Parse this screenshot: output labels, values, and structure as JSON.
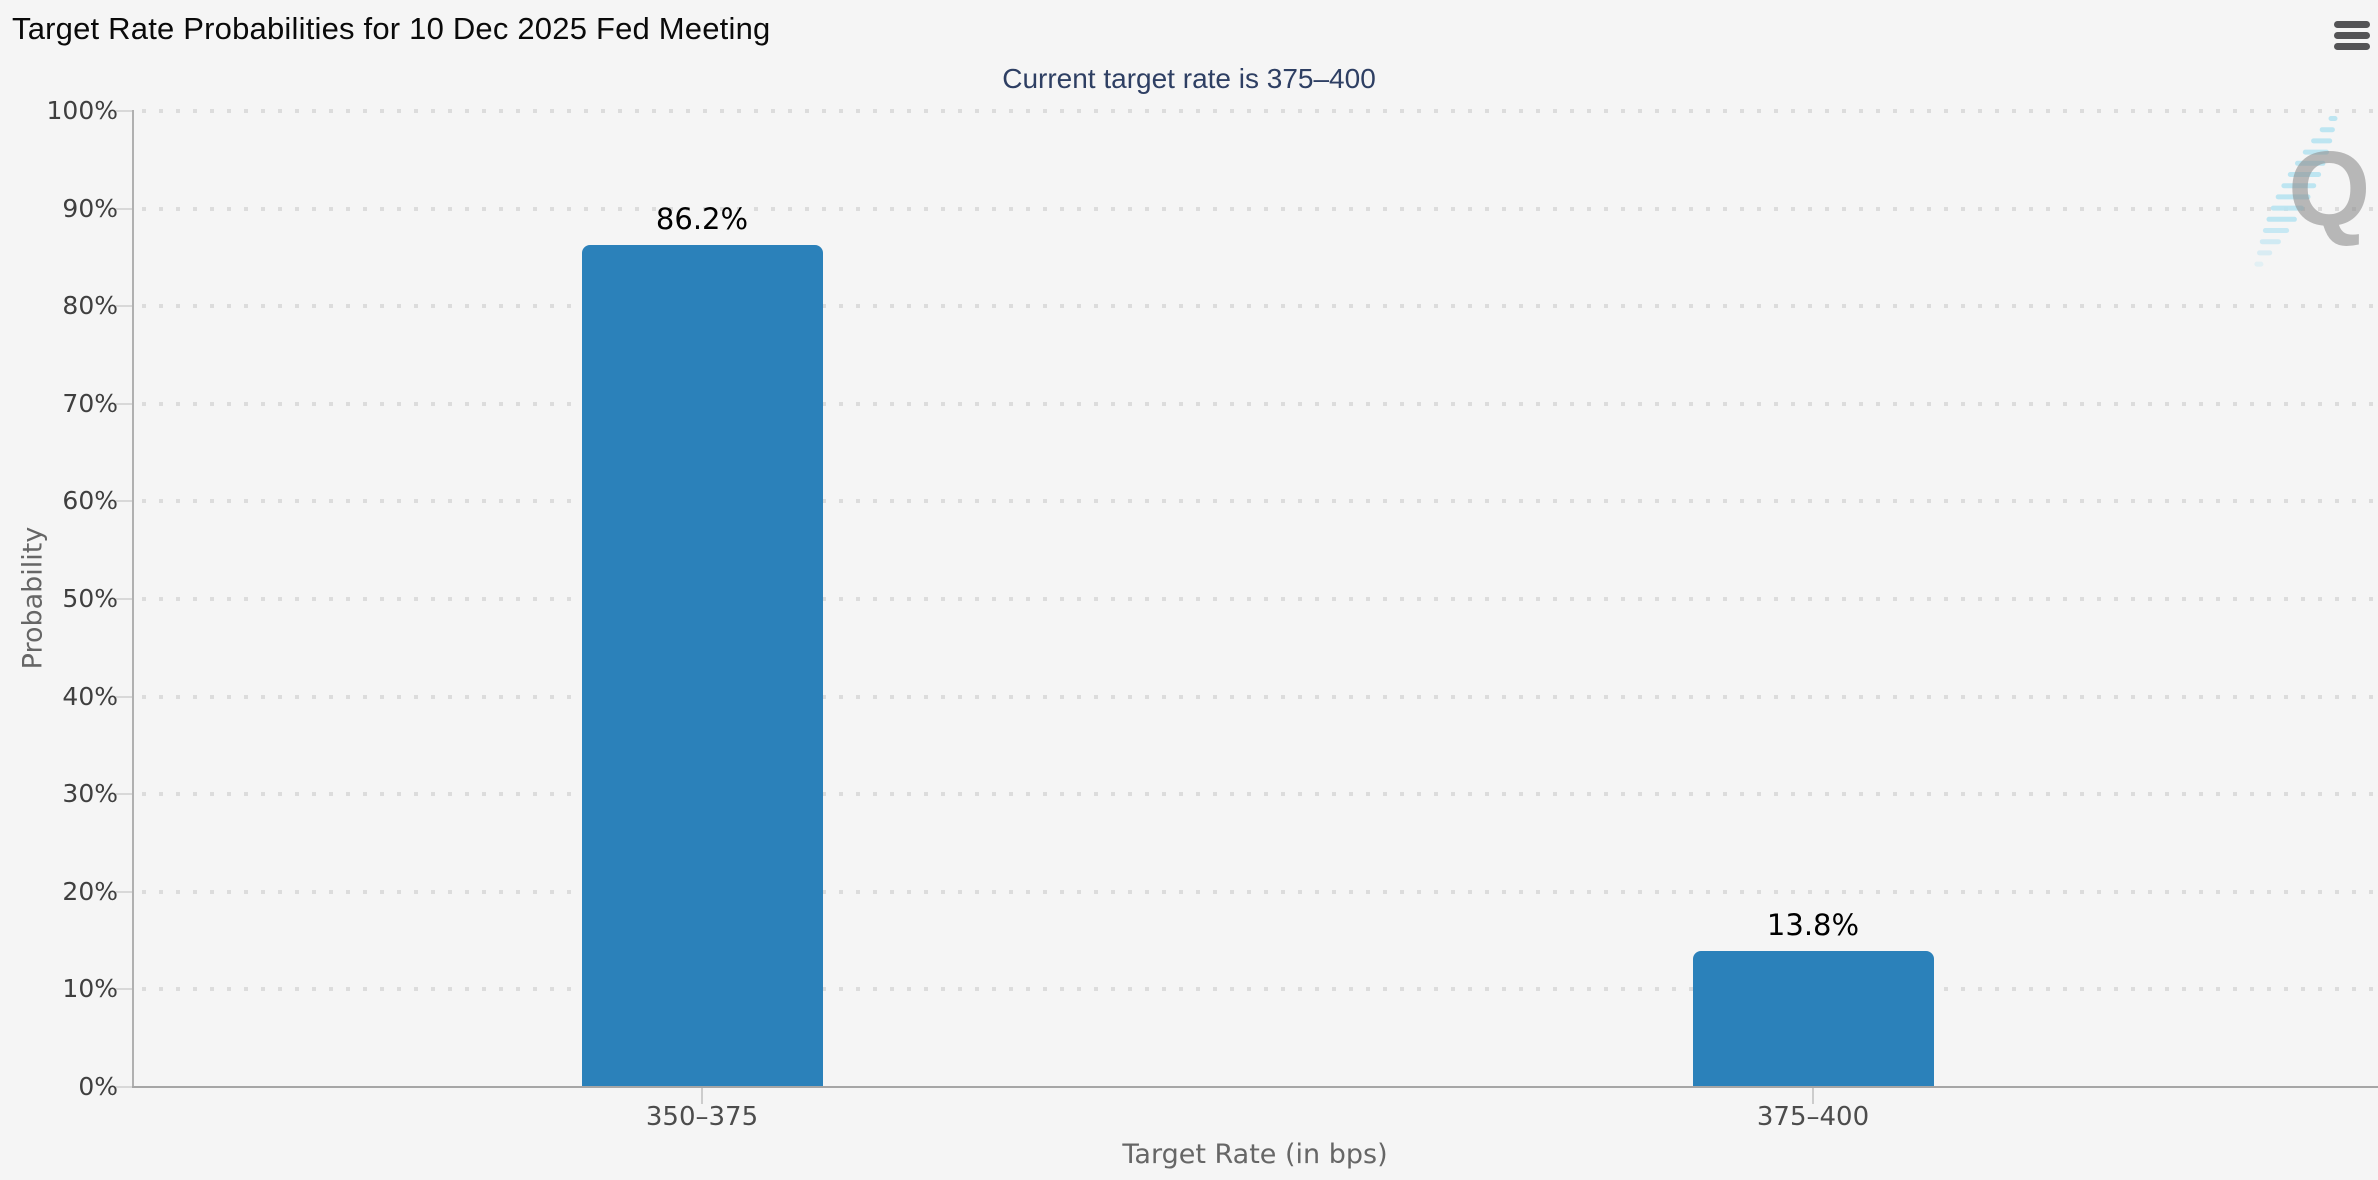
{
  "header": {
    "menu_icon": "hamburger-menu"
  },
  "chart_data": {
    "type": "bar",
    "title": "Target Rate Probabilities for 10 Dec 2025 Fed Meeting",
    "subtitle": "Current target rate is 375–400",
    "categories": [
      "350–375",
      "375–400"
    ],
    "values": [
      86.2,
      13.8
    ],
    "value_labels": [
      "86.2%",
      "13.8%"
    ],
    "xlabel": "Target Rate (in bps)",
    "ylabel": "Probability",
    "ylim": [
      0,
      100
    ],
    "ytick_step": 10,
    "yticks": [
      "0%",
      "10%",
      "20%",
      "30%",
      "40%",
      "50%",
      "60%",
      "70%",
      "80%",
      "90%",
      "100%"
    ],
    "grid": "dotted-horizontal",
    "legend": "none",
    "bar_color": "#2b81ba"
  },
  "watermark": {
    "letter": "Q"
  },
  "colors": {
    "background": "#f5f5f5",
    "bar": "#2b81ba",
    "title": "#0a0a0a",
    "subtitle": "#2e3f63",
    "axis_line": "#a8a8a8",
    "grid_dot": "#dcdcdc",
    "menu_icon": "#545456"
  }
}
